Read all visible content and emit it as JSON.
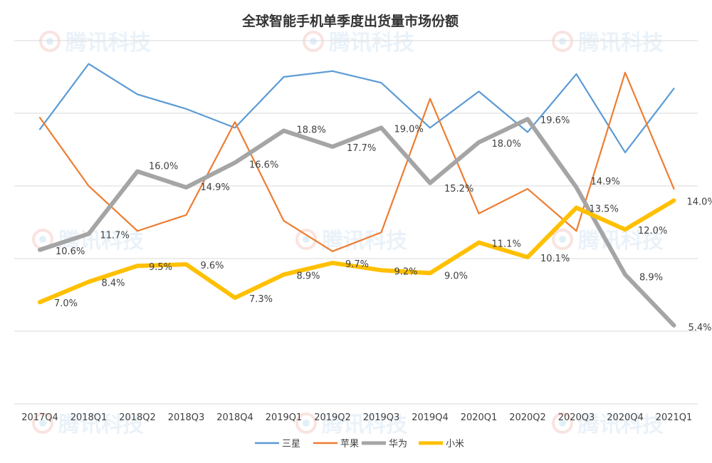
{
  "chart_data": {
    "type": "line",
    "title": "全球智能手机单季度出货量市场份额",
    "watermark": "腾讯科技",
    "categories": [
      "2017Q4",
      "2018Q1",
      "2018Q2",
      "2018Q3",
      "2018Q4",
      "2019Q1",
      "2019Q2",
      "2019Q3",
      "2019Q4",
      "2020Q1",
      "2020Q2",
      "2020Q3",
      "2020Q4",
      "2021Q1"
    ],
    "ylim": [
      0,
      25
    ],
    "grid": true,
    "legend_position": "bottom",
    "series": [
      {
        "name": "三星",
        "color": "#5b9bd5",
        "values": [
          18.9,
          23.4,
          21.3,
          20.3,
          19.0,
          22.5,
          22.9,
          22.1,
          19.0,
          21.5,
          18.7,
          22.7,
          17.3,
          21.7
        ]
      },
      {
        "name": "苹果",
        "color": "#ed7d31",
        "values": [
          19.7,
          15.0,
          11.9,
          13.0,
          19.4,
          12.6,
          10.5,
          11.8,
          21.0,
          13.1,
          14.8,
          11.9,
          22.8,
          14.8
        ]
      },
      {
        "name": "华为",
        "color": "#a5a5a5",
        "values": [
          10.6,
          11.7,
          16.0,
          14.9,
          16.6,
          18.8,
          17.7,
          19.0,
          15.2,
          18.0,
          19.6,
          14.9,
          8.9,
          5.4
        ],
        "labels": [
          "10.6%",
          "11.7%",
          "16.0%",
          "14.9%",
          "16.6%",
          "18.8%",
          "17.7%",
          "19.0%",
          "15.2%",
          "18.0%",
          "19.6%",
          "14.9%",
          "8.9%",
          "5.4%"
        ]
      },
      {
        "name": "小米",
        "color": "#ffc000",
        "values": [
          7.0,
          8.4,
          9.5,
          9.6,
          7.3,
          8.9,
          9.7,
          9.2,
          9.0,
          11.1,
          10.1,
          13.5,
          12.0,
          14.0
        ],
        "labels": [
          "7.0%",
          "8.4%",
          "9.5%",
          "9.6%",
          "7.3%",
          "8.9%",
          "9.7%",
          "9.2%",
          "9.0%",
          "11.1%",
          "10.1%",
          "13.5%",
          "12.0%",
          "14.0%"
        ]
      }
    ]
  }
}
